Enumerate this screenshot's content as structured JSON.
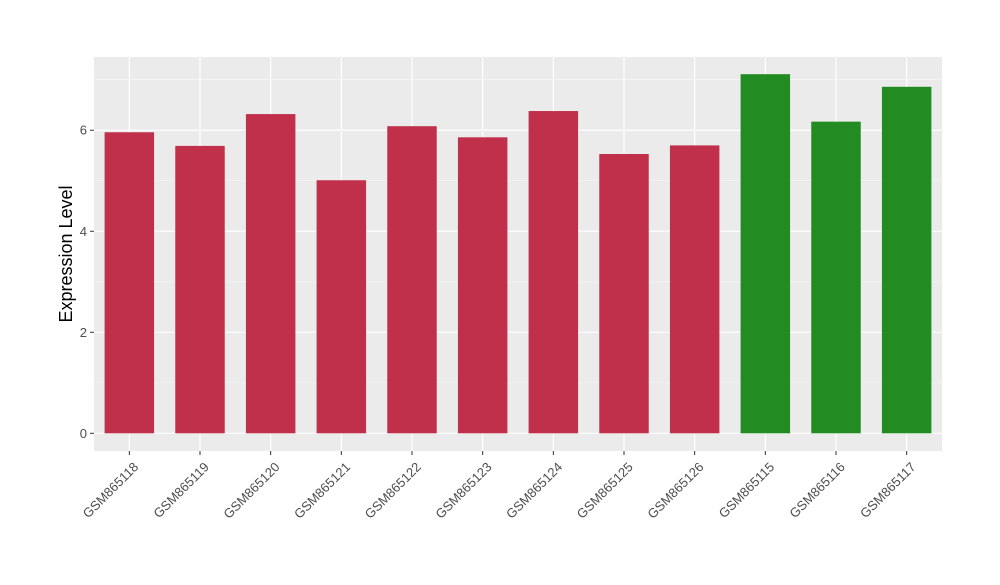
{
  "chart_data": {
    "type": "bar",
    "title": "",
    "xlabel": "",
    "ylabel": "Expression Level",
    "categories": [
      "GSM865118",
      "GSM865119",
      "GSM865120",
      "GSM865121",
      "GSM865122",
      "GSM865123",
      "GSM865124",
      "GSM865125",
      "GSM865126",
      "GSM865115",
      "GSM865116",
      "GSM865117"
    ],
    "values": [
      5.96,
      5.69,
      6.32,
      5.01,
      6.08,
      5.86,
      6.38,
      5.53,
      5.7,
      7.11,
      6.17,
      6.86
    ],
    "bar_colors": [
      "#c0304a",
      "#c0304a",
      "#c0304a",
      "#c0304a",
      "#c0304a",
      "#c0304a",
      "#c0304a",
      "#c0304a",
      "#c0304a",
      "#228b22",
      "#228b22",
      "#228b22"
    ],
    "ylim": [
      -0.35,
      7.45
    ],
    "yticks": [
      0,
      2,
      4,
      6
    ],
    "ytick_labels": [
      "0",
      "2",
      "4",
      "6"
    ],
    "grid": true,
    "legend": "none",
    "colors": {
      "panel_background": "#ebebeb",
      "grid_major": "#ffffff",
      "tick_text": "#4d4d4d",
      "axis_title": "#000000"
    }
  }
}
